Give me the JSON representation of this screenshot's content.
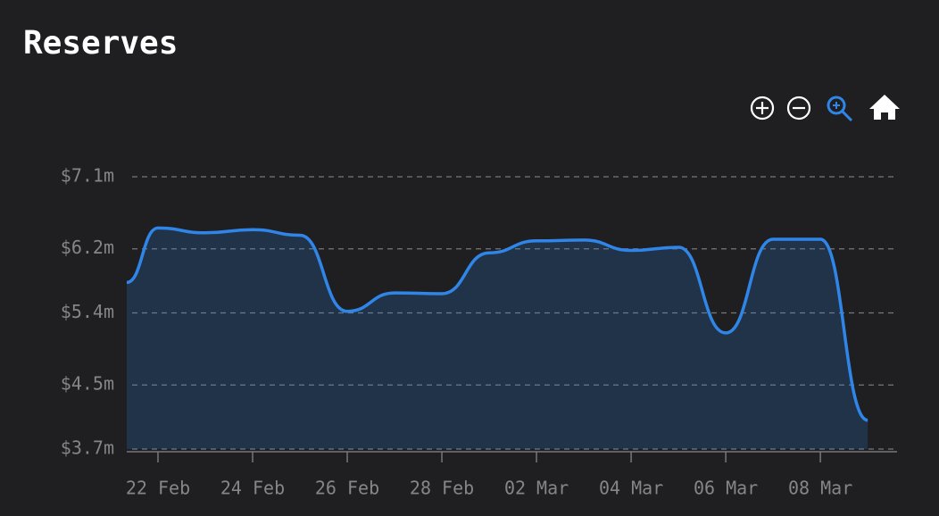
{
  "chart_data": {
    "type": "area",
    "title": "Reserves",
    "x": [
      -0.66,
      0,
      1,
      2,
      3,
      4,
      5,
      6,
      7,
      8,
      9,
      10,
      11,
      12,
      13,
      14,
      15
    ],
    "series": [
      {
        "name": "Reserves",
        "color": "#2f86e8",
        "values": [
          5780000,
          6460000,
          6400000,
          6440000,
          6370000,
          5420000,
          5650000,
          5640000,
          6150000,
          6300000,
          6310000,
          6180000,
          6220000,
          5150000,
          6320000,
          6320000,
          4060000
        ]
      }
    ],
    "xlim": [
      -0.66,
      15.62
    ],
    "xticks": [
      {
        "value": 0,
        "label": "22 Feb"
      },
      {
        "value": 2,
        "label": "24 Feb"
      },
      {
        "value": 4,
        "label": "26 Feb"
      },
      {
        "value": 6,
        "label": "28 Feb"
      },
      {
        "value": 8,
        "label": "02 Mar"
      },
      {
        "value": 10,
        "label": "04 Mar"
      },
      {
        "value": 12,
        "label": "06 Mar"
      },
      {
        "value": 14,
        "label": "08 Mar"
      }
    ],
    "ylim": [
      3700000,
      7100000
    ],
    "yticks": [
      {
        "value": 3700000,
        "label": "$3.7m"
      },
      {
        "value": 4500000,
        "label": "$4.5m"
      },
      {
        "value": 5400000,
        "label": "$5.4m"
      },
      {
        "value": 6200000,
        "label": "$6.2m"
      },
      {
        "value": 7100000,
        "label": "$7.1m"
      }
    ],
    "grid": true
  }
}
